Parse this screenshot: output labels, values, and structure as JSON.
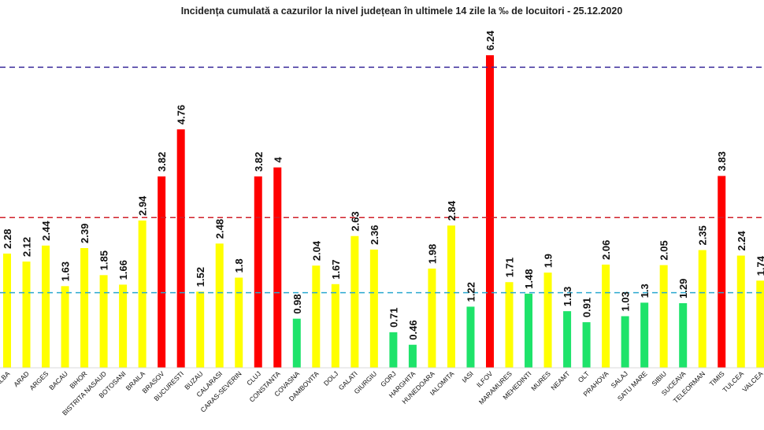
{
  "chart_data": {
    "type": "bar",
    "title": "Incidența cumulată a cazurilor la nivel județean în ultimele 14 zile la ‰ de locuitori - 25.12.2020",
    "xlabel": "",
    "ylabel": "",
    "ylim": [
      0,
      6.6
    ],
    "grid": false,
    "categories": [
      "ALBA",
      "ARAD",
      "ARGES",
      "BACAU",
      "BIHOR",
      "BISTRITA NASAUD",
      "BOTOSANI",
      "BRAILA",
      "BRASOV",
      "BUCURESTI",
      "BUZAU",
      "CALARASI",
      "CARAS-SEVERIN",
      "CLUJ",
      "CONSTANTA",
      "COVASNA",
      "DAMBOVITA",
      "DOLJ",
      "GALATI",
      "GIURGIU",
      "GORJ",
      "HARGHITA",
      "HUNEDOARA",
      "IALOMITA",
      "IASI",
      "ILFOV",
      "MARAMURES",
      "MEHEDINTI",
      "MURES",
      "NEAMT",
      "OLT",
      "PRAHOVA",
      "SALAJ",
      "SATU MARE",
      "SIBIU",
      "SUCEAVA",
      "TELEORMAN",
      "TIMIS",
      "TULCEA",
      "VALCEA"
    ],
    "values": [
      2.28,
      2.12,
      2.44,
      1.63,
      2.39,
      1.85,
      1.66,
      2.94,
      3.82,
      4.76,
      1.52,
      2.48,
      1.8,
      3.82,
      4,
      0.98,
      2.04,
      1.67,
      2.63,
      2.36,
      0.71,
      0.46,
      1.98,
      2.84,
      1.22,
      6.24,
      1.71,
      1.48,
      1.9,
      1.13,
      0.91,
      2.06,
      1.03,
      1.3,
      2.05,
      1.29,
      2.35,
      3.83,
      2.24,
      1.74
    ],
    "data_labels": [
      "2.28",
      "2.12",
      "2.44",
      "1.63",
      "2.39",
      "1.85",
      "1.66",
      "2.94",
      "3.82",
      "4.76",
      "1.52",
      "2.48",
      "1.8",
      "3.82",
      "4",
      "0.98",
      "2.04",
      "1.67",
      "2.63",
      "2.36",
      "0.71",
      "0.46",
      "1.98",
      "2.84",
      "1.22",
      "6.24",
      "1.71",
      "1.48",
      "1.9",
      "1.13",
      "0.91",
      "2.06",
      "1.03",
      "1.3",
      "2.05",
      "1.29",
      "2.35",
      "3.83",
      "2.24",
      "1.74"
    ],
    "thresholds": [
      {
        "value": 1.5,
        "color": "#2aa8d0",
        "style": "dashed"
      },
      {
        "value": 3,
        "color": "#d0202a",
        "style": "dashed"
      },
      {
        "value": 6,
        "color": "#3a2a9a",
        "style": "dashed"
      }
    ],
    "colors": {
      "green": "#1ee36a",
      "yellow": "#ffff00",
      "red": "#ff0000"
    },
    "color_rule": "green below 1.5, yellow 1.5 to 3, red above 3"
  }
}
